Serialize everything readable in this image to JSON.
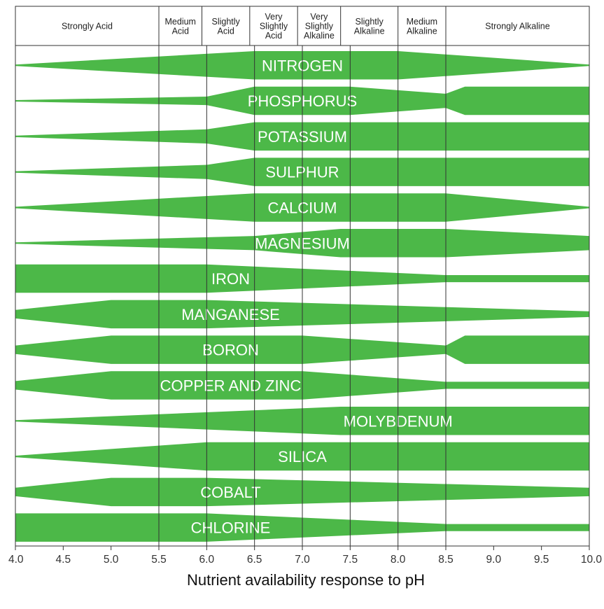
{
  "chart_data": {
    "type": "area",
    "xlabel": "Nutrient availability response to pH",
    "x_range": [
      4.0,
      10.0
    ],
    "x_ticks": [
      "4.0",
      "4.5",
      "5.0",
      "5.5",
      "6.0",
      "6.5",
      "7.0",
      "7.5",
      "8.0",
      "8.5",
      "9.0",
      "9.5",
      "10.0"
    ],
    "zones": [
      {
        "label": [
          "Strongly Acid"
        ],
        "from": 4.0,
        "to": 5.5
      },
      {
        "label": [
          "Medium",
          "Acid"
        ],
        "from": 5.5,
        "to": 5.95
      },
      {
        "label": [
          "Slightly",
          "Acid"
        ],
        "from": 5.95,
        "to": 6.45
      },
      {
        "label": [
          "Very",
          "Slightly",
          "Acid"
        ],
        "from": 6.45,
        "to": 6.95
      },
      {
        "label": [
          "Very",
          "Slightly",
          "Alkaline"
        ],
        "from": 6.95,
        "to": 7.4
      },
      {
        "label": [
          "Slightly",
          "Alkaline"
        ],
        "from": 7.4,
        "to": 8.0
      },
      {
        "label": [
          "Medium",
          "Alkaline"
        ],
        "from": 8.0,
        "to": 8.5
      },
      {
        "label": [
          "Strongly Alkaline"
        ],
        "from": 8.5,
        "to": 10.0
      }
    ],
    "gridlines": [
      5.5,
      6.0,
      6.5,
      7.0,
      7.5,
      8.0,
      8.5
    ],
    "series": [
      {
        "name": "NITROGEN",
        "label_x": 7.0,
        "profile": [
          [
            4.0,
            0.05
          ],
          [
            6.5,
            1.0
          ],
          [
            8.0,
            1.0
          ],
          [
            10.0,
            0.05
          ]
        ]
      },
      {
        "name": "PHOSPHORUS",
        "label_x": 7.0,
        "profile": [
          [
            4.0,
            0.05
          ],
          [
            6.0,
            0.3
          ],
          [
            6.5,
            1.0
          ],
          [
            7.5,
            1.0
          ],
          [
            8.5,
            0.5
          ],
          [
            8.7,
            1.0
          ],
          [
            10.0,
            1.0
          ]
        ]
      },
      {
        "name": "POTASSIUM",
        "label_x": 7.0,
        "profile": [
          [
            4.0,
            0.05
          ],
          [
            6.0,
            0.5
          ],
          [
            6.5,
            1.0
          ],
          [
            10.0,
            1.0
          ]
        ]
      },
      {
        "name": "SULPHUR",
        "label_x": 7.0,
        "profile": [
          [
            4.0,
            0.05
          ],
          [
            6.0,
            0.5
          ],
          [
            6.5,
            1.0
          ],
          [
            10.0,
            1.0
          ]
        ]
      },
      {
        "name": "CALCIUM",
        "label_x": 7.0,
        "profile": [
          [
            4.0,
            0.05
          ],
          [
            6.5,
            1.0
          ],
          [
            8.5,
            1.0
          ],
          [
            10.0,
            0.05
          ]
        ]
      },
      {
        "name": "MAGNESIUM",
        "label_x": 7.0,
        "profile": [
          [
            4.0,
            0.05
          ],
          [
            6.5,
            0.5
          ],
          [
            7.4,
            1.0
          ],
          [
            8.5,
            1.0
          ],
          [
            10.0,
            0.5
          ]
        ]
      },
      {
        "name": "IRON",
        "label_x": 6.25,
        "profile": [
          [
            4.0,
            1.0
          ],
          [
            6.0,
            1.0
          ],
          [
            8.5,
            0.25
          ],
          [
            10.0,
            0.25
          ]
        ]
      },
      {
        "name": "MANGANESE",
        "label_x": 6.25,
        "profile": [
          [
            4.0,
            0.3
          ],
          [
            5.0,
            1.0
          ],
          [
            6.0,
            1.0
          ],
          [
            10.0,
            0.2
          ]
        ]
      },
      {
        "name": "BORON",
        "label_x": 6.25,
        "profile": [
          [
            4.0,
            0.3
          ],
          [
            5.0,
            1.0
          ],
          [
            7.0,
            1.0
          ],
          [
            8.5,
            0.3
          ],
          [
            8.7,
            1.0
          ],
          [
            10.0,
            1.0
          ]
        ]
      },
      {
        "name": "COPPER AND ZINC",
        "label_x": 6.25,
        "profile": [
          [
            4.0,
            0.3
          ],
          [
            5.0,
            1.0
          ],
          [
            7.0,
            1.0
          ],
          [
            8.5,
            0.25
          ],
          [
            10.0,
            0.25
          ]
        ]
      },
      {
        "name": "MOLYBDENUM",
        "label_x": 8.0,
        "profile": [
          [
            4.0,
            0.05
          ],
          [
            7.4,
            1.0
          ],
          [
            10.0,
            1.0
          ]
        ]
      },
      {
        "name": "SILICA",
        "label_x": 7.0,
        "profile": [
          [
            4.0,
            0.05
          ],
          [
            6.0,
            1.0
          ],
          [
            10.0,
            1.0
          ]
        ]
      },
      {
        "name": "COBALT",
        "label_x": 6.25,
        "profile": [
          [
            4.0,
            0.3
          ],
          [
            5.0,
            1.0
          ],
          [
            6.0,
            1.0
          ],
          [
            10.0,
            0.3
          ]
        ]
      },
      {
        "name": "CHLORINE",
        "label_x": 6.25,
        "profile": [
          [
            4.0,
            1.0
          ],
          [
            6.0,
            1.0
          ],
          [
            8.5,
            0.25
          ],
          [
            10.0,
            0.25
          ]
        ]
      }
    ],
    "colors": {
      "band": "#4cb848",
      "grid": "#333333",
      "text_on_band": "#ffffff"
    }
  }
}
